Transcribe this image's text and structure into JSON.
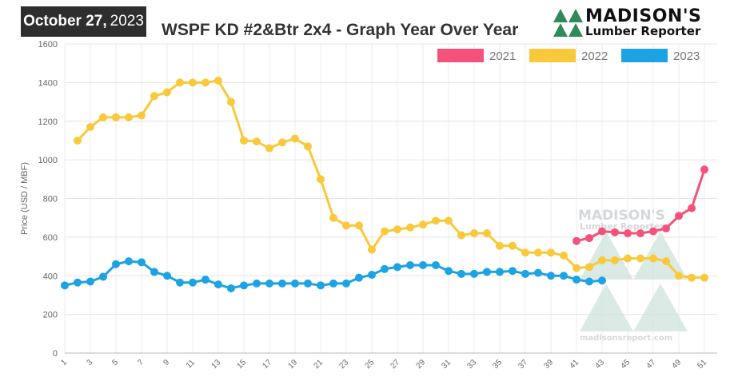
{
  "header": {
    "date_bold": "October 27,",
    "date_year": "2023",
    "title": "WSPF KD #2&Btr 2x4 - Graph Year Over Year",
    "logo_name": "MADISON'S",
    "logo_sub": "Lumber Reporter"
  },
  "watermark": {
    "name": "MADISON'S",
    "sub": "Lumber Reporter",
    "url": "madisonsreport.com"
  },
  "colors": {
    "s2021": "#f4527a",
    "s2022": "#f9c93c",
    "s2023": "#1ca3e3",
    "logo_green": "#2f8a5a",
    "watermark": "#cfe3dc"
  },
  "chart_data": {
    "type": "line",
    "title": "WSPF KD #2&Btr 2x4 - Graph Year Over Year",
    "xlabel": "",
    "ylabel": "Price (USD / MBF)",
    "ylim": [
      0,
      1600
    ],
    "xlim": [
      1,
      52
    ],
    "yticks": [
      0,
      200,
      400,
      600,
      800,
      1000,
      1200,
      1400,
      1600
    ],
    "xticks": [
      1,
      3,
      5,
      7,
      9,
      11,
      13,
      15,
      17,
      19,
      21,
      23,
      25,
      27,
      29,
      31,
      33,
      35,
      37,
      39,
      41,
      43,
      45,
      47,
      49,
      51
    ],
    "grid": true,
    "legend": "top-right",
    "series": [
      {
        "name": "2021",
        "x": [
          41,
          42,
          43,
          44,
          45,
          46,
          47,
          48,
          49,
          50,
          51
        ],
        "values": [
          580,
          595,
          630,
          625,
          620,
          620,
          630,
          645,
          710,
          750,
          950
        ]
      },
      {
        "name": "2022",
        "x": [
          2,
          3,
          4,
          5,
          6,
          7,
          8,
          9,
          10,
          11,
          12,
          13,
          14,
          15,
          16,
          17,
          18,
          19,
          20,
          21,
          22,
          23,
          24,
          25,
          26,
          27,
          28,
          29,
          30,
          31,
          32,
          33,
          34,
          35,
          36,
          37,
          38,
          39,
          40,
          41,
          42,
          43,
          44,
          45,
          46,
          47,
          48,
          49,
          50,
          51
        ],
        "values": [
          1100,
          1170,
          1220,
          1220,
          1220,
          1230,
          1330,
          1350,
          1400,
          1400,
          1400,
          1410,
          1300,
          1100,
          1095,
          1060,
          1090,
          1110,
          1070,
          900,
          700,
          660,
          660,
          535,
          630,
          640,
          650,
          665,
          685,
          685,
          610,
          620,
          620,
          555,
          555,
          520,
          520,
          520,
          505,
          440,
          445,
          480,
          480,
          490,
          490,
          490,
          475,
          400,
          390,
          390
        ]
      },
      {
        "name": "2023",
        "x": [
          1,
          2,
          3,
          4,
          5,
          6,
          7,
          8,
          9,
          10,
          11,
          12,
          13,
          14,
          15,
          16,
          17,
          18,
          19,
          20,
          21,
          22,
          23,
          24,
          25,
          26,
          27,
          28,
          29,
          30,
          31,
          32,
          33,
          34,
          35,
          36,
          37,
          38,
          39,
          40,
          41,
          42,
          43
        ],
        "values": [
          350,
          365,
          370,
          395,
          460,
          475,
          470,
          420,
          400,
          365,
          365,
          380,
          355,
          335,
          350,
          360,
          360,
          360,
          360,
          360,
          350,
          360,
          360,
          390,
          405,
          435,
          445,
          455,
          455,
          455,
          425,
          410,
          410,
          420,
          420,
          425,
          410,
          415,
          400,
          400,
          380,
          370,
          375
        ]
      }
    ]
  }
}
